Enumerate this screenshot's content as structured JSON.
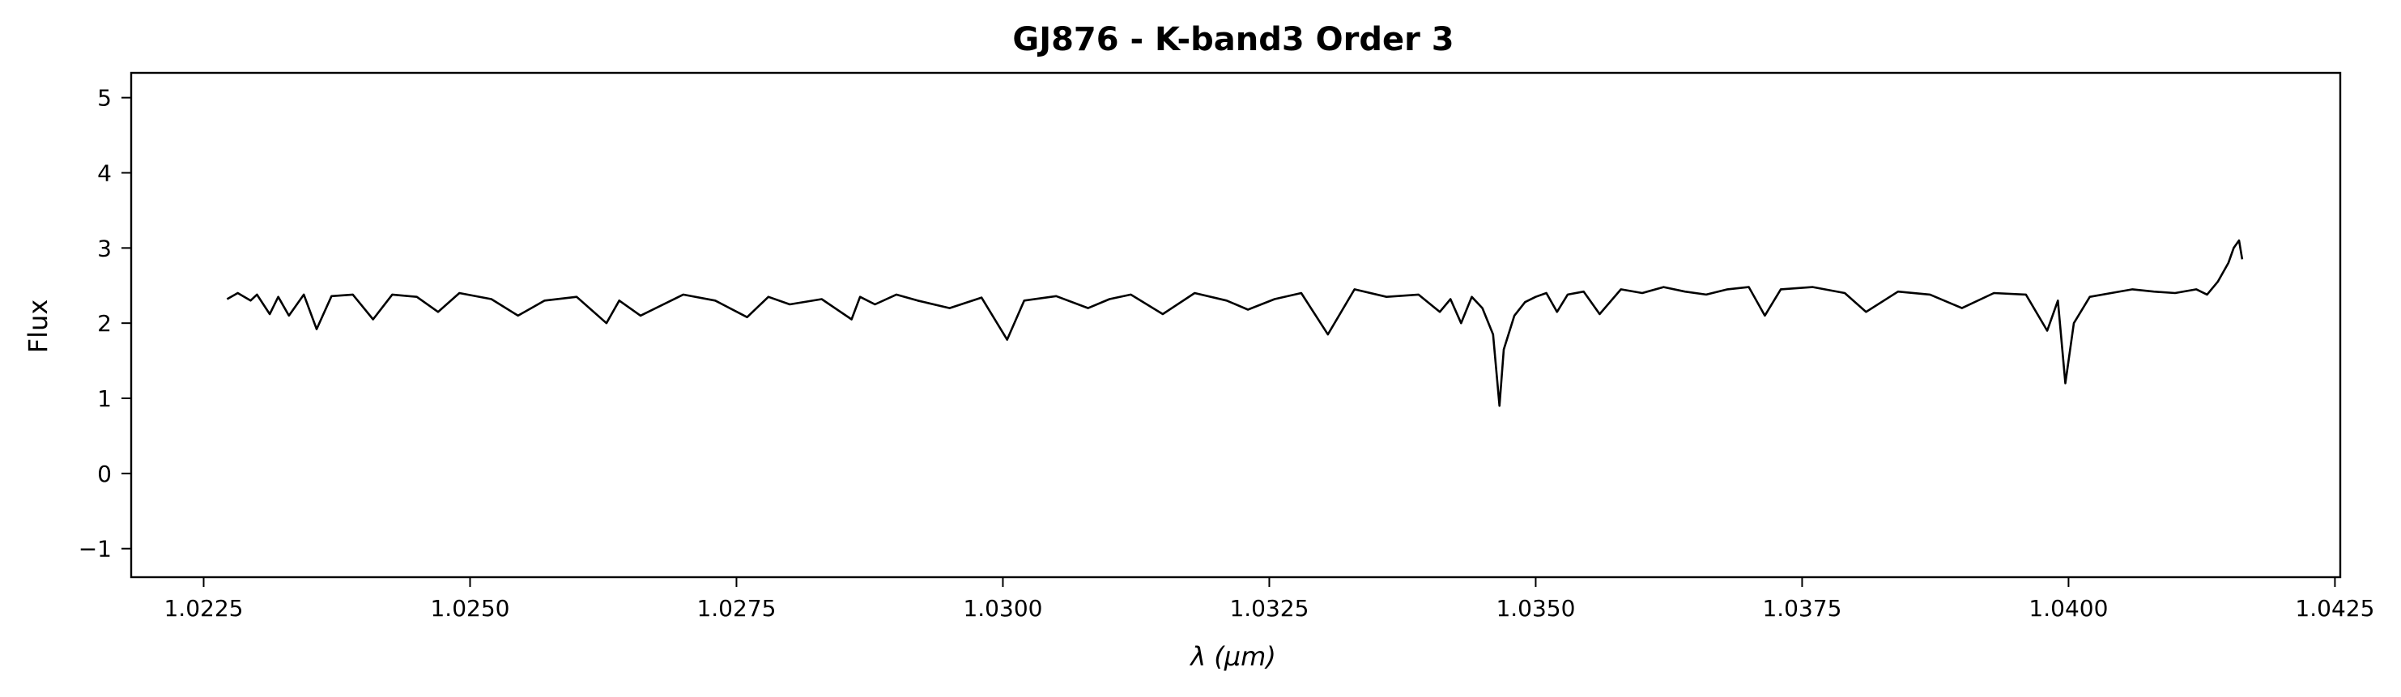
{
  "chart_data": {
    "type": "line",
    "title": "GJ876 - K-band3 Order 3",
    "xlabel": "λ (μm)",
    "ylabel": "Flux",
    "xlim": [
      1.02182,
      1.04255
    ],
    "ylim": [
      -1.38,
      5.33
    ],
    "grid": false,
    "x_ticks": [
      1.0225,
      1.025,
      1.0275,
      1.03,
      1.0325,
      1.035,
      1.0375,
      1.04,
      1.0425
    ],
    "x_tick_labels": [
      "1.0225",
      "1.0250",
      "1.0275",
      "1.0300",
      "1.0325",
      "1.0350",
      "1.0375",
      "1.0400",
      "1.0425"
    ],
    "y_ticks": [
      -1,
      0,
      1,
      2,
      3,
      4,
      5
    ],
    "y_tick_labels": [
      "−1",
      "0",
      "1",
      "2",
      "3",
      "4",
      "5"
    ],
    "series": [
      {
        "color": "#000000",
        "x": [
          1.02272,
          1.02282,
          1.02294,
          1.023,
          1.02312,
          1.0232,
          1.0233,
          1.02344,
          1.02356,
          1.0237,
          1.0239,
          1.02409,
          1.02427,
          1.0245,
          1.0247,
          1.0249,
          1.0252,
          1.02545,
          1.0257,
          1.026,
          1.02628,
          1.0264,
          1.0266,
          1.027,
          1.0273,
          1.0276,
          1.0278,
          1.028,
          1.0283,
          1.02858,
          1.02866,
          1.0288,
          1.029,
          1.0292,
          1.0295,
          1.0298,
          1.03004,
          1.0302,
          1.0305,
          1.0308,
          1.031,
          1.0312,
          1.0315,
          1.0318,
          1.0321,
          1.0323,
          1.03255,
          1.0328,
          1.03305,
          1.0333,
          1.0336,
          1.0339,
          1.0341,
          1.0342,
          1.0343,
          1.0344,
          1.0345,
          1.0346,
          1.03466,
          1.0347,
          1.0348,
          1.0349,
          1.035,
          1.0351,
          1.0352,
          1.0353,
          1.03545,
          1.0356,
          1.0358,
          1.036,
          1.0362,
          1.0364,
          1.0366,
          1.0368,
          1.037,
          1.03715,
          1.0373,
          1.0376,
          1.0379,
          1.0381,
          1.0384,
          1.0387,
          1.039,
          1.0393,
          1.0396,
          1.0398,
          1.0399,
          1.03997,
          1.04005,
          1.0402,
          1.0404,
          1.0406,
          1.0408,
          1.041,
          1.0412,
          1.0413,
          1.0414,
          1.0415,
          1.04155,
          1.0416,
          1.04163
        ],
        "y": [
          2.32,
          2.4,
          2.3,
          2.38,
          2.12,
          2.35,
          2.1,
          2.38,
          1.92,
          2.36,
          2.38,
          2.05,
          2.38,
          2.35,
          2.15,
          2.4,
          2.32,
          2.1,
          2.3,
          2.35,
          2.0,
          2.3,
          2.1,
          2.38,
          2.3,
          2.08,
          2.35,
          2.25,
          2.32,
          2.05,
          2.35,
          2.25,
          2.38,
          2.3,
          2.2,
          2.34,
          1.78,
          2.3,
          2.36,
          2.2,
          2.32,
          2.38,
          2.12,
          2.4,
          2.3,
          2.18,
          2.32,
          2.4,
          1.85,
          2.45,
          2.35,
          2.38,
          2.15,
          2.32,
          2.0,
          2.35,
          2.2,
          1.85,
          0.9,
          1.65,
          2.1,
          2.28,
          2.35,
          2.4,
          2.15,
          2.38,
          2.42,
          2.12,
          2.45,
          2.4,
          2.48,
          2.42,
          2.38,
          2.45,
          2.48,
          2.1,
          2.45,
          2.48,
          2.4,
          2.15,
          2.42,
          2.38,
          2.2,
          2.4,
          2.38,
          1.9,
          2.3,
          1.2,
          2.0,
          2.35,
          2.4,
          2.45,
          2.42,
          2.4,
          2.45,
          2.38,
          2.55,
          2.8,
          3.0,
          3.1,
          2.85
        ]
      }
    ]
  }
}
